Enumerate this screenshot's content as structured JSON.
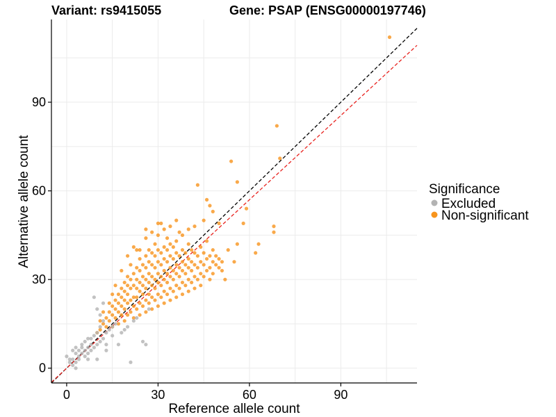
{
  "title": {
    "variant": "Variant: rs9415055",
    "gene": "Gene: PSAP (ENSG00000197746)"
  },
  "colors": {
    "excluded": "#b3b3b3",
    "non_significant": "#f7941d",
    "identity_line": "#000000",
    "fit_line": "#e8231f",
    "grid": "#ebebeb",
    "axis": "#000000"
  },
  "legend": {
    "title": "Significance",
    "items": [
      {
        "label": "Excluded",
        "color": "#b3b3b3"
      },
      {
        "label": "Non-significant",
        "color": "#f7941d"
      }
    ]
  },
  "chart_data": {
    "type": "scatter",
    "xlabel": "Reference allele count",
    "ylabel": "Alternative allele count",
    "xlim": [
      -5,
      115
    ],
    "ylim": [
      -5,
      118
    ],
    "xticks": [
      0,
      30,
      60,
      90
    ],
    "yticks": [
      0,
      30,
      60,
      90
    ],
    "xtick_labels": [
      "0",
      "30",
      "60",
      "90"
    ],
    "ytick_labels": [
      "0",
      "30",
      "60",
      "90"
    ],
    "grid": true,
    "legend_position": "right",
    "lines": [
      {
        "name": "identity",
        "slope": 1.0,
        "intercept": 0,
        "style": "dashed",
        "color": "#000000"
      },
      {
        "name": "fit",
        "slope": 0.95,
        "intercept": 0,
        "style": "dashed",
        "color": "#e8231f"
      }
    ],
    "series": [
      {
        "name": "Excluded",
        "color": "#b3b3b3",
        "points": [
          [
            0,
            4
          ],
          [
            1,
            2
          ],
          [
            1,
            3
          ],
          [
            2,
            1
          ],
          [
            2,
            3
          ],
          [
            2,
            6
          ],
          [
            3,
            0
          ],
          [
            3,
            2
          ],
          [
            3,
            5
          ],
          [
            3,
            7
          ],
          [
            4,
            3
          ],
          [
            4,
            4
          ],
          [
            4,
            6
          ],
          [
            5,
            5
          ],
          [
            5,
            7
          ],
          [
            5,
            8
          ],
          [
            6,
            4
          ],
          [
            6,
            6
          ],
          [
            6,
            9
          ],
          [
            7,
            5
          ],
          [
            7,
            7
          ],
          [
            7,
            3
          ],
          [
            8,
            6
          ],
          [
            8,
            8
          ],
          [
            8,
            10
          ],
          [
            9,
            7
          ],
          [
            9,
            11
          ],
          [
            9,
            24
          ],
          [
            10,
            8
          ],
          [
            10,
            12
          ],
          [
            10,
            20
          ],
          [
            11,
            9
          ],
          [
            11,
            14
          ],
          [
            11,
            18
          ],
          [
            12,
            10
          ],
          [
            12,
            16
          ],
          [
            13,
            12
          ],
          [
            13,
            8
          ],
          [
            14,
            13
          ],
          [
            15,
            11
          ],
          [
            15,
            14
          ],
          [
            16,
            15
          ],
          [
            17,
            8
          ],
          [
            18,
            12
          ],
          [
            19,
            13
          ],
          [
            20,
            14
          ],
          [
            21,
            2
          ],
          [
            22,
            16
          ],
          [
            23,
            17
          ],
          [
            25,
            9
          ],
          [
            26,
            8
          ],
          [
            27,
            20
          ],
          [
            12,
            22
          ],
          [
            13,
            6
          ],
          [
            7,
            10
          ],
          [
            10,
            3
          ]
        ]
      },
      {
        "name": "Non-significant",
        "color": "#f7941d",
        "points": [
          [
            10,
            12
          ],
          [
            11,
            13
          ],
          [
            12,
            15
          ],
          [
            13,
            14
          ],
          [
            13,
            17
          ],
          [
            14,
            16
          ],
          [
            14,
            19
          ],
          [
            15,
            14
          ],
          [
            15,
            18
          ],
          [
            15,
            21
          ],
          [
            16,
            17
          ],
          [
            16,
            20
          ],
          [
            16,
            23
          ],
          [
            17,
            15
          ],
          [
            17,
            19
          ],
          [
            17,
            22
          ],
          [
            17,
            25
          ],
          [
            18,
            18
          ],
          [
            18,
            21
          ],
          [
            18,
            24
          ],
          [
            18,
            27
          ],
          [
            18,
            33
          ],
          [
            19,
            16
          ],
          [
            19,
            20
          ],
          [
            19,
            23
          ],
          [
            19,
            26
          ],
          [
            20,
            18
          ],
          [
            20,
            22
          ],
          [
            20,
            25
          ],
          [
            20,
            28
          ],
          [
            20,
            31
          ],
          [
            21,
            19
          ],
          [
            21,
            23
          ],
          [
            21,
            27
          ],
          [
            21,
            30
          ],
          [
            21,
            35
          ],
          [
            22,
            17
          ],
          [
            22,
            21
          ],
          [
            22,
            24
          ],
          [
            22,
            28
          ],
          [
            22,
            32
          ],
          [
            23,
            20
          ],
          [
            23,
            24
          ],
          [
            23,
            27
          ],
          [
            23,
            30
          ],
          [
            23,
            34
          ],
          [
            24,
            18
          ],
          [
            24,
            22
          ],
          [
            24,
            26
          ],
          [
            24,
            29
          ],
          [
            24,
            33
          ],
          [
            24,
            37
          ],
          [
            25,
            21
          ],
          [
            25,
            25
          ],
          [
            25,
            28
          ],
          [
            25,
            31
          ],
          [
            25,
            35
          ],
          [
            26,
            19
          ],
          [
            26,
            23
          ],
          [
            26,
            27
          ],
          [
            26,
            30
          ],
          [
            26,
            34
          ],
          [
            26,
            38
          ],
          [
            26,
            44
          ],
          [
            27,
            22
          ],
          [
            27,
            25
          ],
          [
            27,
            29
          ],
          [
            27,
            32
          ],
          [
            27,
            36
          ],
          [
            27,
            40
          ],
          [
            28,
            20
          ],
          [
            28,
            24
          ],
          [
            28,
            28
          ],
          [
            28,
            31
          ],
          [
            28,
            35
          ],
          [
            28,
            39
          ],
          [
            29,
            23
          ],
          [
            29,
            27
          ],
          [
            29,
            30
          ],
          [
            29,
            34
          ],
          [
            29,
            38
          ],
          [
            29,
            42
          ],
          [
            30,
            21
          ],
          [
            30,
            25
          ],
          [
            30,
            29
          ],
          [
            30,
            32
          ],
          [
            30,
            36
          ],
          [
            30,
            40
          ],
          [
            30,
            45
          ],
          [
            31,
            24
          ],
          [
            31,
            28
          ],
          [
            31,
            31
          ],
          [
            31,
            35
          ],
          [
            31,
            39
          ],
          [
            31,
            49
          ],
          [
            32,
            22
          ],
          [
            32,
            26
          ],
          [
            32,
            30
          ],
          [
            32,
            33
          ],
          [
            32,
            37
          ],
          [
            32,
            41
          ],
          [
            33,
            25
          ],
          [
            33,
            29
          ],
          [
            33,
            32
          ],
          [
            33,
            36
          ],
          [
            33,
            40
          ],
          [
            33,
            44
          ],
          [
            34,
            23
          ],
          [
            34,
            27
          ],
          [
            34,
            31
          ],
          [
            34,
            34
          ],
          [
            34,
            38
          ],
          [
            34,
            42
          ],
          [
            35,
            26
          ],
          [
            35,
            30
          ],
          [
            35,
            33
          ],
          [
            35,
            37
          ],
          [
            35,
            41
          ],
          [
            36,
            24
          ],
          [
            36,
            28
          ],
          [
            36,
            32
          ],
          [
            36,
            35
          ],
          [
            36,
            39
          ],
          [
            36,
            43
          ],
          [
            37,
            27
          ],
          [
            37,
            31
          ],
          [
            37,
            34
          ],
          [
            37,
            38
          ],
          [
            37,
            46
          ],
          [
            38,
            25
          ],
          [
            38,
            29
          ],
          [
            38,
            33
          ],
          [
            38,
            36
          ],
          [
            38,
            40
          ],
          [
            39,
            28
          ],
          [
            39,
            32
          ],
          [
            39,
            35
          ],
          [
            39,
            39
          ],
          [
            40,
            26
          ],
          [
            40,
            30
          ],
          [
            40,
            34
          ],
          [
            40,
            37
          ],
          [
            40,
            42
          ],
          [
            41,
            29
          ],
          [
            41,
            33
          ],
          [
            41,
            36
          ],
          [
            41,
            40
          ],
          [
            42,
            27
          ],
          [
            42,
            31
          ],
          [
            42,
            35
          ],
          [
            42,
            39
          ],
          [
            43,
            30
          ],
          [
            43,
            34
          ],
          [
            43,
            38
          ],
          [
            43,
            62
          ],
          [
            44,
            28
          ],
          [
            44,
            32
          ],
          [
            44,
            36
          ],
          [
            44,
            41
          ],
          [
            45,
            31
          ],
          [
            45,
            35
          ],
          [
            45,
            39
          ],
          [
            46,
            33
          ],
          [
            46,
            37
          ],
          [
            46,
            43
          ],
          [
            47,
            30
          ],
          [
            47,
            34
          ],
          [
            47,
            38
          ],
          [
            48,
            32
          ],
          [
            48,
            36
          ],
          [
            48,
            40
          ],
          [
            49,
            35
          ],
          [
            49,
            38
          ],
          [
            50,
            34
          ],
          [
            50,
            37
          ],
          [
            51,
            33
          ],
          [
            51,
            36
          ],
          [
            52,
            30
          ],
          [
            53,
            40
          ],
          [
            54,
            70
          ],
          [
            55,
            36
          ],
          [
            56,
            42
          ],
          [
            56,
            63
          ],
          [
            58,
            49
          ],
          [
            59,
            54
          ],
          [
            62,
            39
          ],
          [
            63,
            42
          ],
          [
            68,
            46
          ],
          [
            68,
            48
          ],
          [
            69,
            82
          ],
          [
            70,
            71
          ],
          [
            106,
            112
          ],
          [
            32,
            47
          ],
          [
            30,
            49
          ],
          [
            28,
            46
          ],
          [
            34,
            48
          ],
          [
            36,
            50
          ],
          [
            38,
            45
          ],
          [
            46,
            57
          ],
          [
            48,
            53
          ],
          [
            50,
            49
          ],
          [
            47,
            55
          ],
          [
            45,
            50
          ],
          [
            42,
            48
          ],
          [
            40,
            47
          ],
          [
            26,
            47
          ],
          [
            22,
            41
          ],
          [
            20,
            38
          ],
          [
            24,
            40
          ],
          [
            14,
            22
          ],
          [
            15,
            25
          ],
          [
            16,
            28
          ],
          [
            19,
            29
          ],
          [
            23,
            40
          ],
          [
            12,
            19
          ],
          [
            11,
            16
          ]
        ]
      }
    ]
  }
}
